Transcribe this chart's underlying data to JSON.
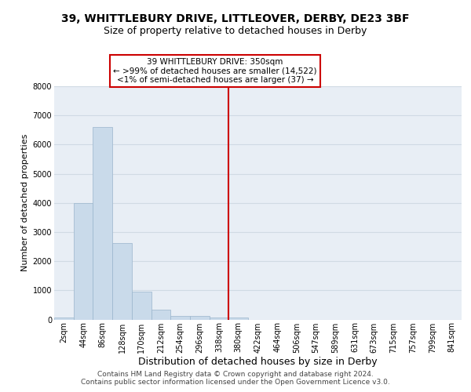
{
  "title1": "39, WHITTLEBURY DRIVE, LITTLEOVER, DERBY, DE23 3BF",
  "title2": "Size of property relative to detached houses in Derby",
  "xlabel": "Distribution of detached houses by size in Derby",
  "ylabel": "Number of detached properties",
  "footer1": "Contains HM Land Registry data © Crown copyright and database right 2024.",
  "footer2": "Contains public sector information licensed under the Open Government Licence v3.0.",
  "bin_labels": [
    "2sqm",
    "44sqm",
    "86sqm",
    "128sqm",
    "170sqm",
    "212sqm",
    "254sqm",
    "296sqm",
    "338sqm",
    "380sqm",
    "422sqm",
    "464sqm",
    "506sqm",
    "547sqm",
    "589sqm",
    "631sqm",
    "673sqm",
    "715sqm",
    "757sqm",
    "799sqm",
    "841sqm"
  ],
  "bar_values": [
    70,
    4000,
    6600,
    2620,
    960,
    330,
    130,
    110,
    60,
    60,
    0,
    0,
    0,
    0,
    0,
    0,
    0,
    0,
    0,
    0,
    0
  ],
  "bar_color": "#c9daea",
  "bar_edge_color": "#9ab5cc",
  "vline_x": 8.5,
  "vline_color": "#cc0000",
  "annotation_line1": "39 WHITTLEBURY DRIVE: 350sqm",
  "annotation_line2": "← >99% of detached houses are smaller (14,522)",
  "annotation_line3": "<1% of semi-detached houses are larger (37) →",
  "ylim_max": 8000,
  "yticks": [
    0,
    1000,
    2000,
    3000,
    4000,
    5000,
    6000,
    7000,
    8000
  ],
  "plot_bg_color": "#e8eef5",
  "grid_color": "#d0dae4",
  "title1_fontsize": 10,
  "title2_fontsize": 9,
  "xlabel_fontsize": 9,
  "ylabel_fontsize": 8,
  "tick_fontsize": 7,
  "annotation_fontsize": 7.5,
  "footer_fontsize": 6.5
}
